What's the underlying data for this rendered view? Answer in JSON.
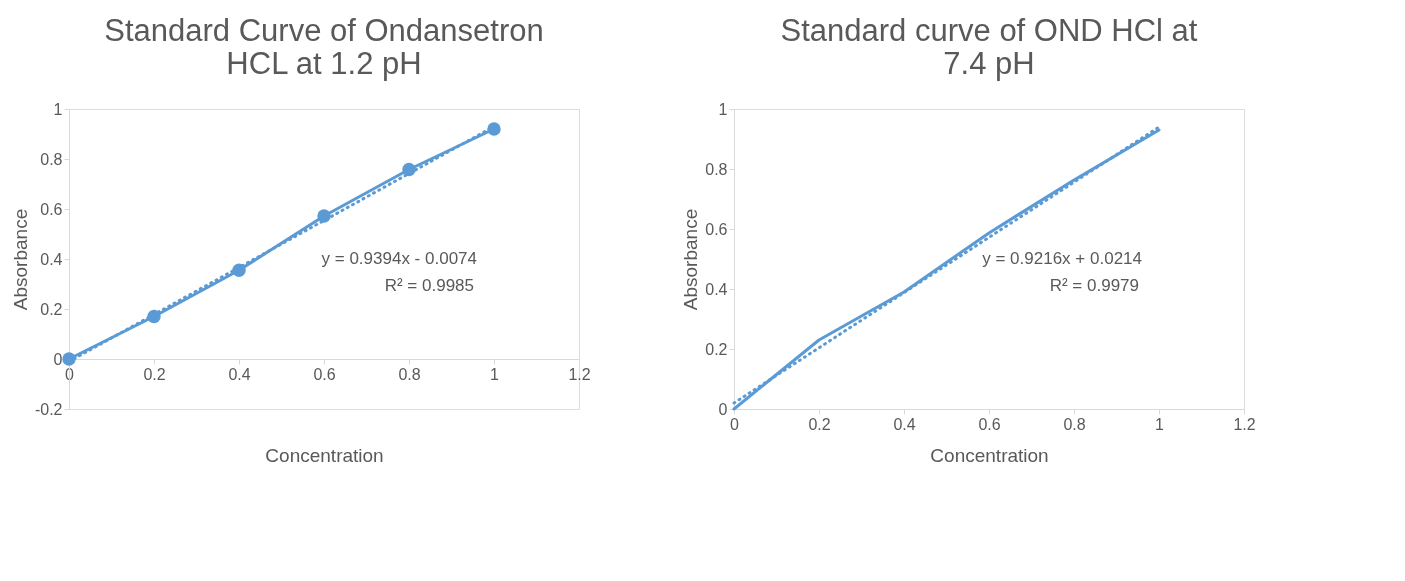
{
  "chart_data": [
    {
      "type": "line",
      "title": "Standard Curve of Ondansetron HCL at 1.2 pH",
      "xlabel": "Concentration",
      "ylabel": "Absorbance",
      "xlim": [
        0,
        1.2
      ],
      "xticks": [
        0,
        0.2,
        0.4,
        0.6,
        0.8,
        1,
        1.2
      ],
      "ylim": [
        -0.2,
        1
      ],
      "yticks": [
        -0.2,
        0,
        0.2,
        0.4,
        0.6,
        0.8,
        1
      ],
      "grid": false,
      "legend": false,
      "annotations": [
        "y = 0.9394x - 0.0074",
        "R² = 0.9985"
      ],
      "series": [
        {
          "color": "#5b9bd5",
          "marker": "circle",
          "line_style": "solid",
          "x": [
            0,
            0.2,
            0.4,
            0.6,
            0.8,
            1
          ],
          "values": [
            0,
            0.17,
            0.355,
            0.572,
            0.758,
            0.92
          ]
        },
        {
          "color": "#5b9bd5",
          "marker": "none",
          "line_style": "dotted",
          "x": [
            0,
            1
          ],
          "values": [
            -0.01,
            0.93
          ]
        }
      ]
    },
    {
      "type": "line",
      "title": "Standard curve of OND HCl at 7.4 pH",
      "xlabel": "Concentration",
      "ylabel": "Absorbance",
      "xlim": [
        0,
        1.2
      ],
      "xticks": [
        0,
        0.2,
        0.4,
        0.6,
        0.8,
        1,
        1.2
      ],
      "ylim": [
        0,
        1
      ],
      "yticks": [
        0,
        0.2,
        0.4,
        0.6,
        0.8,
        1
      ],
      "grid": false,
      "legend": false,
      "annotations": [
        "y = 0.9216x + 0.0214",
        "R² = 0.9979"
      ],
      "series": [
        {
          "color": "#5b9bd5",
          "marker": "none",
          "line_style": "solid",
          "x": [
            0,
            0.2,
            0.4,
            0.6,
            0.8,
            1
          ],
          "values": [
            0,
            0.23,
            0.39,
            0.587,
            0.763,
            0.93
          ]
        },
        {
          "color": "#5b9bd5",
          "marker": "none",
          "line_style": "dotted",
          "x": [
            0,
            1
          ],
          "values": [
            0.02,
            0.94
          ]
        }
      ]
    }
  ]
}
